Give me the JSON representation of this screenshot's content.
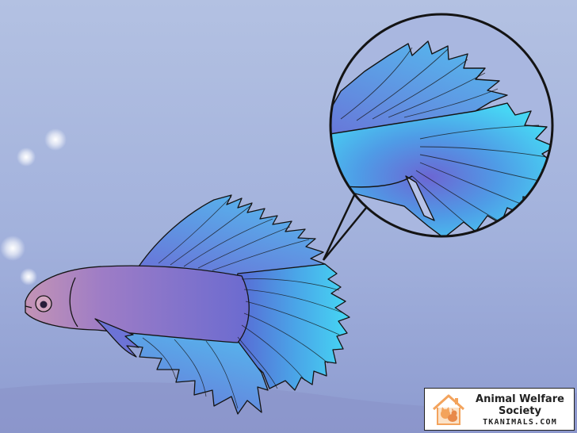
{
  "scene": {
    "subject": "betta-fish",
    "background_color_top": "#aab9dc",
    "background_color_bottom": "#8f9fd2",
    "fish_body_color": "#7f6fc9",
    "fish_head_color": "#c28fb3",
    "fin_color": "#3fc2ea",
    "outline_color": "#141414"
  },
  "watermark": {
    "title": "Animal Welfare Society",
    "url": "TKANIMALS.COM",
    "logo_icon": "house-with-pets-icon",
    "logo_color": "#f3a35c"
  }
}
